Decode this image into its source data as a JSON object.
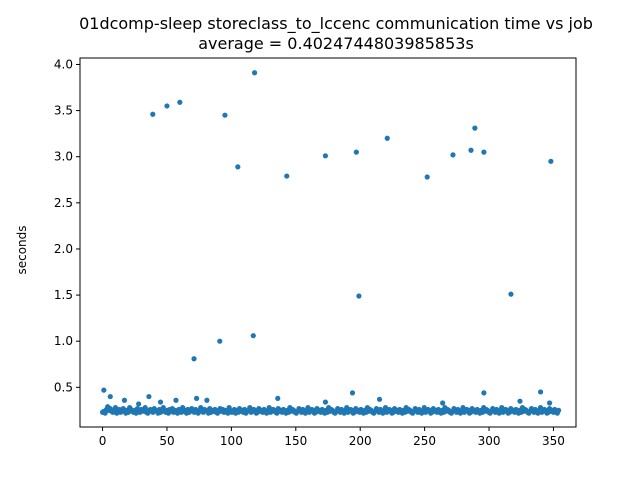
{
  "chart_data": {
    "type": "scatter",
    "title": "01dcomp-sleep storeclass_to_lccenc communication time vs job",
    "subtitle": "average = 0.4024744803985853s",
    "xlabel": "",
    "ylabel": "seconds",
    "xlim": [
      -17.5,
      367.5
    ],
    "ylim": [
      0.07,
      4.07
    ],
    "xticks": [
      0,
      50,
      100,
      150,
      200,
      250,
      300,
      350
    ],
    "yticks": [
      0.5,
      1.0,
      1.5,
      2.0,
      2.5,
      3.0,
      3.5,
      4.0
    ],
    "xtick_labels": [
      "0",
      "50",
      "100",
      "150",
      "200",
      "250",
      "300",
      "350"
    ],
    "ytick_labels": [
      "0.5",
      "1.0",
      "1.5",
      "2.0",
      "2.5",
      "3.0",
      "3.5",
      "4.0"
    ],
    "grid": false,
    "marker_color": "#1f77b4",
    "outliers": [
      {
        "x": 1,
        "y": 0.47
      },
      {
        "x": 6,
        "y": 0.4
      },
      {
        "x": 17,
        "y": 0.36
      },
      {
        "x": 28,
        "y": 0.32
      },
      {
        "x": 36,
        "y": 0.4
      },
      {
        "x": 39,
        "y": 3.46
      },
      {
        "x": 45,
        "y": 0.34
      },
      {
        "x": 50,
        "y": 3.55
      },
      {
        "x": 57,
        "y": 0.36
      },
      {
        "x": 60,
        "y": 3.59
      },
      {
        "x": 71,
        "y": 0.81
      },
      {
        "x": 73,
        "y": 0.38
      },
      {
        "x": 81,
        "y": 0.36
      },
      {
        "x": 91,
        "y": 1.0
      },
      {
        "x": 95,
        "y": 3.45
      },
      {
        "x": 105,
        "y": 2.89
      },
      {
        "x": 117,
        "y": 1.06
      },
      {
        "x": 118,
        "y": 3.91
      },
      {
        "x": 136,
        "y": 0.38
      },
      {
        "x": 143,
        "y": 2.79
      },
      {
        "x": 173,
        "y": 3.01
      },
      {
        "x": 173,
        "y": 0.34
      },
      {
        "x": 194,
        "y": 0.44
      },
      {
        "x": 197,
        "y": 3.05
      },
      {
        "x": 199,
        "y": 1.49
      },
      {
        "x": 215,
        "y": 0.37
      },
      {
        "x": 221,
        "y": 3.2
      },
      {
        "x": 252,
        "y": 2.78
      },
      {
        "x": 264,
        "y": 0.33
      },
      {
        "x": 272,
        "y": 3.02
      },
      {
        "x": 286,
        "y": 3.07
      },
      {
        "x": 289,
        "y": 3.31
      },
      {
        "x": 296,
        "y": 3.05
      },
      {
        "x": 296,
        "y": 0.44
      },
      {
        "x": 317,
        "y": 1.51
      },
      {
        "x": 324,
        "y": 0.35
      },
      {
        "x": 340,
        "y": 0.45
      },
      {
        "x": 347,
        "y": 0.33
      },
      {
        "x": 348,
        "y": 2.95
      }
    ],
    "baseline": {
      "x_start": 0,
      "x_end": 354,
      "y_values": [
        0.23,
        0.24,
        0.22,
        0.26,
        0.29,
        0.25,
        0.27,
        0.24,
        0.23,
        0.25,
        0.28,
        0.22,
        0.24,
        0.26,
        0.23,
        0.25,
        0.27,
        0.24,
        0.22,
        0.25,
        0.23,
        0.28,
        0.26,
        0.24,
        0.23,
        0.25,
        0.22,
        0.27,
        0.24,
        0.23,
        0.26,
        0.25,
        0.24,
        0.28,
        0.23,
        0.22,
        0.25,
        0.26,
        0.24,
        0.23,
        0.27,
        0.25,
        0.24,
        0.22,
        0.26,
        0.23,
        0.25,
        0.28,
        0.24,
        0.23,
        0.25,
        0.22,
        0.26,
        0.24,
        0.27,
        0.23,
        0.25,
        0.24,
        0.22,
        0.26,
        0.25,
        0.23,
        0.28,
        0.24,
        0.25,
        0.22,
        0.26,
        0.23,
        0.24,
        0.27,
        0.25,
        0.23,
        0.26,
        0.24,
        0.22,
        0.25,
        0.28,
        0.24,
        0.23,
        0.26,
        0.25,
        0.24,
        0.22,
        0.27,
        0.23,
        0.25,
        0.24,
        0.26,
        0.23,
        0.22,
        0.25,
        0.27,
        0.24,
        0.26,
        0.23,
        0.25,
        0.24,
        0.22,
        0.28,
        0.25,
        0.23,
        0.24,
        0.26,
        0.22,
        0.25,
        0.23,
        0.27,
        0.24,
        0.25,
        0.23,
        0.26,
        0.22,
        0.24,
        0.25,
        0.28,
        0.23,
        0.24,
        0.26,
        0.25,
        0.22,
        0.23,
        0.27,
        0.24,
        0.25,
        0.23,
        0.26,
        0.24,
        0.22,
        0.25,
        0.28,
        0.23,
        0.24,
        0.26,
        0.25,
        0.23,
        0.22,
        0.27,
        0.24,
        0.25,
        0.23,
        0.26,
        0.24,
        0.22,
        0.25,
        0.23,
        0.28,
        0.24,
        0.26,
        0.25,
        0.23,
        0.22,
        0.24,
        0.27,
        0.25,
        0.23,
        0.26,
        0.24,
        0.22,
        0.25,
        0.28,
        0.23,
        0.24,
        0.26,
        0.25,
        0.22,
        0.23,
        0.27,
        0.24,
        0.25,
        0.23,
        0.26,
        0.24,
        0.22,
        0.25,
        0.23,
        0.28,
        0.24,
        0.26,
        0.25,
        0.23,
        0.22,
        0.24,
        0.27,
        0.25,
        0.23,
        0.26,
        0.24,
        0.22,
        0.25,
        0.28,
        0.23,
        0.24,
        0.26,
        0.25,
        0.22,
        0.23,
        0.27,
        0.24,
        0.25,
        0.23,
        0.26,
        0.24,
        0.22,
        0.25,
        0.23,
        0.28,
        0.24,
        0.26,
        0.25,
        0.23,
        0.22,
        0.24,
        0.27,
        0.25,
        0.23,
        0.26,
        0.24,
        0.22,
        0.25,
        0.28,
        0.23,
        0.24,
        0.26,
        0.25,
        0.22,
        0.23,
        0.27,
        0.24,
        0.25,
        0.23,
        0.26,
        0.24,
        0.22,
        0.25,
        0.23,
        0.28,
        0.24,
        0.26,
        0.25,
        0.23,
        0.22,
        0.24,
        0.27,
        0.25,
        0.23,
        0.26,
        0.24,
        0.22,
        0.25,
        0.28,
        0.23,
        0.24,
        0.26,
        0.25,
        0.22,
        0.23,
        0.27,
        0.24,
        0.25,
        0.23,
        0.26,
        0.24,
        0.22,
        0.25,
        0.23,
        0.28,
        0.24,
        0.26,
        0.25,
        0.23,
        0.22,
        0.24,
        0.27,
        0.25,
        0.23,
        0.26,
        0.24,
        0.22,
        0.25,
        0.28,
        0.23,
        0.24,
        0.26,
        0.25,
        0.22,
        0.23,
        0.27,
        0.24,
        0.25,
        0.23,
        0.26,
        0.24,
        0.22,
        0.25,
        0.23,
        0.28,
        0.24,
        0.26,
        0.25,
        0.23,
        0.22,
        0.24,
        0.27,
        0.25,
        0.23,
        0.26,
        0.24,
        0.22,
        0.25,
        0.28,
        0.23,
        0.24,
        0.26,
        0.25,
        0.22,
        0.23,
        0.27,
        0.24,
        0.25,
        0.23,
        0.26,
        0.24,
        0.22,
        0.25,
        0.23,
        0.28,
        0.24,
        0.26,
        0.25,
        0.23,
        0.22,
        0.24,
        0.27,
        0.25,
        0.23,
        0.26,
        0.24,
        0.22,
        0.25,
        0.28,
        0.23,
        0.24,
        0.26,
        0.25,
        0.22,
        0.23,
        0.27,
        0.24,
        0.25,
        0.23,
        0.26,
        0.24,
        0.22,
        0.25
      ]
    }
  }
}
